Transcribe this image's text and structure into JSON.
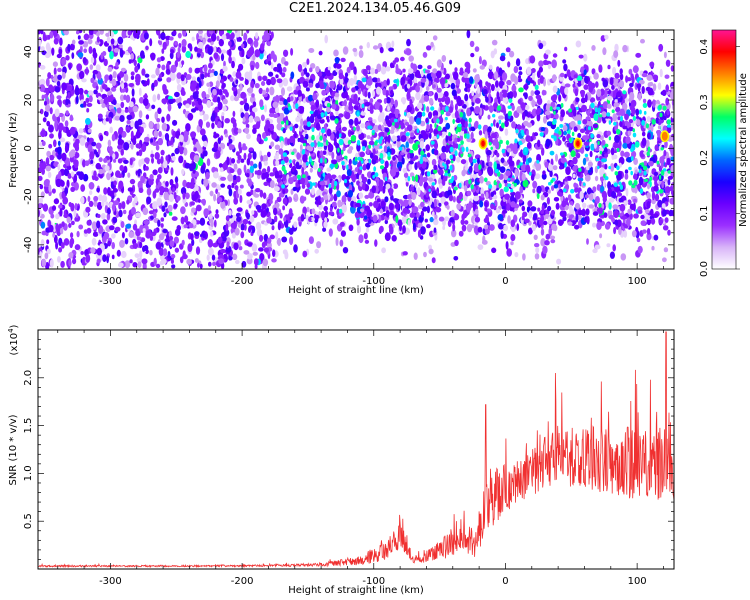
{
  "title": "C2E1.2024.134.05.46.G09",
  "chart_data": [
    {
      "type": "heatmap",
      "xlabel": "Height of straight line (km)",
      "ylabel": "Frequency (Hz)",
      "xlim": [
        -355,
        128
      ],
      "ylim": [
        -50,
        49
      ],
      "xticks": [
        -300,
        -200,
        -100,
        0,
        100
      ],
      "yticks": [
        -40,
        -20,
        0,
        20,
        40
      ],
      "colorbar": {
        "label": "Normalized spectral amplitude",
        "range": [
          0,
          0.43
        ],
        "ticks": [
          "0.0",
          "0.1",
          "0.2",
          "0.3",
          "0.4"
        ],
        "colors": [
          "#ffffff",
          "#d8b4f8",
          "#9b30ff",
          "#6a00ff",
          "#1a00ff",
          "#0066ff",
          "#00ffff",
          "#00ff66",
          "#ffff00",
          "#ff7f00",
          "#ff0000",
          "#ff1493"
        ]
      },
      "band": {
        "left_region": {
          "x": [
            -355,
            -175
          ],
          "freq_half_width": 49
        },
        "right_region": {
          "x": [
            -175,
            128
          ],
          "freq_half_width": 30
        }
      },
      "peaks": [
        {
          "x": -17,
          "freq": 2,
          "amplitude": 0.4
        },
        {
          "x": 55,
          "freq": 2,
          "amplitude": 0.4
        },
        {
          "x": 121,
          "freq": 5,
          "amplitude": 0.25
        }
      ]
    },
    {
      "type": "line",
      "xlabel": "Height of straight line (km)",
      "ylabel": "SNR (10 * v/v)",
      "y_multiplier": "(x10",
      "y_multiplier_exp": "4",
      "y_multiplier_close": ")",
      "xlim": [
        -355,
        128
      ],
      "ylim": [
        0,
        25000
      ],
      "xticks": [
        -300,
        -200,
        -100,
        0,
        100
      ],
      "yticks": [
        "0.5",
        "1.0",
        "1.5",
        "2.0"
      ],
      "ytick_values": [
        5000,
        10000,
        15000,
        20000
      ],
      "series_color": "#f03030",
      "envelope": [
        {
          "x": -355,
          "base": 300,
          "amp": 150
        },
        {
          "x": -250,
          "base": 300,
          "amp": 150
        },
        {
          "x": -180,
          "base": 350,
          "amp": 180
        },
        {
          "x": -140,
          "base": 450,
          "amp": 300
        },
        {
          "x": -110,
          "base": 900,
          "amp": 900
        },
        {
          "x": -90,
          "base": 2000,
          "amp": 2000
        },
        {
          "x": -78,
          "base": 3500,
          "amp": 2800
        },
        {
          "x": -70,
          "base": 900,
          "amp": 600
        },
        {
          "x": -50,
          "base": 1800,
          "amp": 1800
        },
        {
          "x": -35,
          "base": 3500,
          "amp": 3500
        },
        {
          "x": -22,
          "base": 2500,
          "amp": 3000
        },
        {
          "x": -12,
          "base": 7000,
          "amp": 6000
        },
        {
          "x": 0,
          "base": 8500,
          "amp": 4500
        },
        {
          "x": 20,
          "base": 10000,
          "amp": 4500
        },
        {
          "x": 40,
          "base": 12000,
          "amp": 6000
        },
        {
          "x": 70,
          "base": 11500,
          "amp": 6500
        },
        {
          "x": 100,
          "base": 11000,
          "amp": 7000
        },
        {
          "x": 128,
          "base": 11500,
          "amp": 8000
        }
      ],
      "spikes": [
        {
          "x": -15,
          "y": 17200
        },
        {
          "x": 38,
          "y": 20500
        },
        {
          "x": 122,
          "y": 24800
        }
      ]
    }
  ]
}
